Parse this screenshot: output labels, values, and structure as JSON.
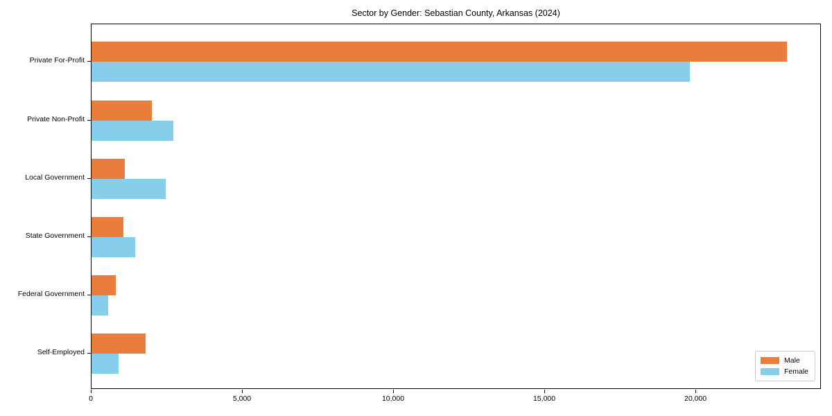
{
  "title": "Sector by Gender: Sebastian County, Arkansas (2024)",
  "legend": {
    "items": [
      {
        "label": "Male",
        "color": "#e87d3c"
      },
      {
        "label": "Female",
        "color": "#87ceeb"
      }
    ]
  },
  "chart_data": {
    "type": "bar",
    "orientation": "horizontal",
    "title": "Sector by Gender: Sebastian County, Arkansas (2024)",
    "categories": [
      "Private For-Profit",
      "Private Non-Profit",
      "Local Government",
      "State Government",
      "Federal Government",
      "Self-Employed"
    ],
    "series": [
      {
        "name": "Male",
        "color": "#e87d3c",
        "values": [
          23000,
          2000,
          1100,
          1050,
          800,
          1800
        ]
      },
      {
        "name": "Female",
        "color": "#87ceeb",
        "values": [
          19800,
          2700,
          2450,
          1450,
          550,
          900
        ]
      }
    ],
    "xlabel": "",
    "ylabel": "",
    "xlim": [
      0,
      24150
    ],
    "xticks": [
      0,
      5000,
      10000,
      15000,
      20000
    ],
    "xtick_labels": [
      "0",
      "5,000",
      "10,000",
      "15,000",
      "20,000"
    ],
    "grid": false,
    "legend_position": "lower right"
  }
}
